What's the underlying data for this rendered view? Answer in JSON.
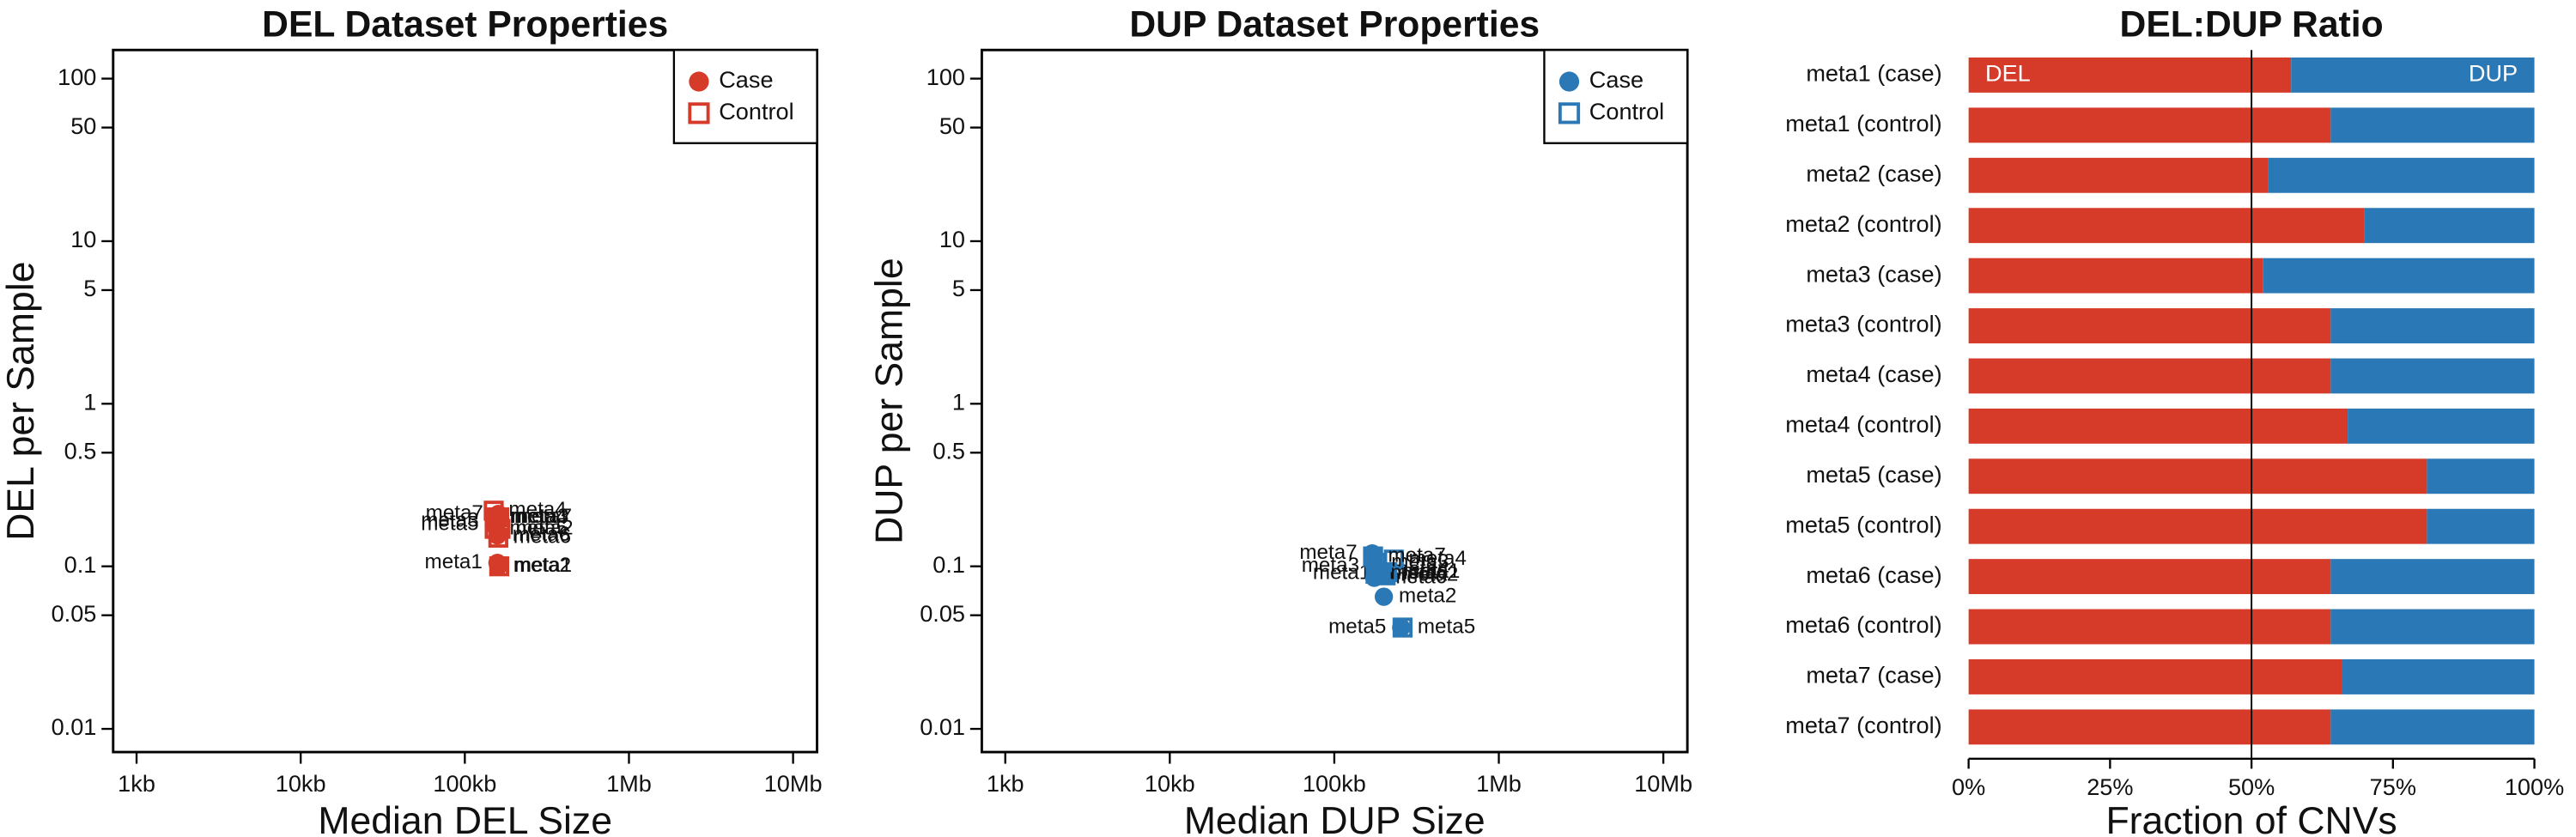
{
  "chart_data": [
    {
      "type": "scatter",
      "title": "DEL Dataset Properties",
      "x_label": "Median DEL Size",
      "y_label": "DEL per Sample",
      "xscale": "log",
      "yscale": "log",
      "xlim": [
        720,
        14000000
      ],
      "ylim": [
        0.0072,
        150
      ],
      "xticks": [
        {
          "value": 1000,
          "label": "1kb"
        },
        {
          "value": 10000,
          "label": "10kb"
        },
        {
          "value": 100000,
          "label": "100kb"
        },
        {
          "value": 1000000,
          "label": "1Mb"
        },
        {
          "value": 10000000,
          "label": "10Mb"
        }
      ],
      "yticks": [
        100,
        50,
        10,
        5,
        1,
        0.5,
        0.1,
        0.05,
        0.01
      ],
      "legend": "upper right",
      "series": [
        {
          "name": "Case",
          "marker": "circle",
          "color": "#d63b2a",
          "labels": [
            "meta1",
            "meta2",
            "meta3",
            "meta4",
            "meta5",
            "meta6",
            "meta7"
          ],
          "x": [
            158000,
            160000,
            150000,
            152000,
            150000,
            158000,
            160000
          ],
          "values": [
            0.105,
            0.1,
            0.19,
            0.2,
            0.18,
            0.155,
            0.21
          ]
        },
        {
          "name": "Control",
          "marker": "square-open",
          "color": "#d63b2a",
          "labels": [
            "meta1",
            "meta2",
            "meta3",
            "meta4",
            "meta5",
            "meta6",
            "meta7"
          ],
          "x": [
            162000,
            165000,
            155000,
            150000,
            152000,
            160000,
            162000
          ],
          "values": [
            0.1,
            0.17,
            0.2,
            0.22,
            0.17,
            0.15,
            0.2
          ]
        }
      ]
    },
    {
      "type": "scatter",
      "title": "DUP Dataset Properties",
      "x_label": "Median DUP Size",
      "y_label": "DUP per Sample",
      "xscale": "log",
      "yscale": "log",
      "xlim": [
        720,
        14000000
      ],
      "ylim": [
        0.0072,
        150
      ],
      "xticks": [
        {
          "value": 1000,
          "label": "1kb"
        },
        {
          "value": 10000,
          "label": "10kb"
        },
        {
          "value": 100000,
          "label": "100kb"
        },
        {
          "value": 1000000,
          "label": "1Mb"
        },
        {
          "value": 10000000,
          "label": "10Mb"
        }
      ],
      "yticks": [
        100,
        50,
        10,
        5,
        1,
        0.5,
        0.1,
        0.05,
        0.01
      ],
      "legend": "upper right",
      "series": [
        {
          "name": "Case",
          "marker": "circle",
          "color": "#2a78b5",
          "labels": [
            "meta1",
            "meta2",
            "meta3",
            "meta4",
            "meta5",
            "meta6",
            "meta7"
          ],
          "x": [
            205000,
            200000,
            175000,
            180000,
            255000,
            175000,
            170000
          ],
          "values": [
            0.09,
            0.065,
            0.1,
            0.095,
            0.042,
            0.085,
            0.12
          ]
        },
        {
          "name": "Control",
          "marker": "square-open",
          "color": "#2a78b5",
          "labels": [
            "meta1",
            "meta2",
            "meta3",
            "meta4",
            "meta5",
            "meta6",
            "meta7"
          ],
          "x": [
            210000,
            205000,
            180000,
            230000,
            260000,
            178000,
            172000
          ],
          "values": [
            0.092,
            0.088,
            0.105,
            0.11,
            0.042,
            0.09,
            0.115
          ]
        }
      ]
    },
    {
      "type": "stacked-barh",
      "title": "DEL:DUP Ratio",
      "x_label": "Fraction of CNVs",
      "categories": [
        "meta1 (case)",
        "meta1 (control)",
        "meta2 (case)",
        "meta2 (control)",
        "meta3 (case)",
        "meta3 (control)",
        "meta4 (case)",
        "meta4 (control)",
        "meta5 (case)",
        "meta5 (control)",
        "meta6 (case)",
        "meta6 (control)",
        "meta7 (case)",
        "meta7 (control)"
      ],
      "xlim": [
        0,
        100
      ],
      "xticks": [
        {
          "value": 0,
          "label": "0%"
        },
        {
          "value": 25,
          "label": "25%"
        },
        {
          "value": 50,
          "label": "50%"
        },
        {
          "value": 75,
          "label": "75%"
        },
        {
          "value": 100,
          "label": "100%"
        }
      ],
      "refline": 50,
      "series": [
        {
          "name": "DEL",
          "color": "#d63b2a",
          "values": [
            57,
            64,
            53,
            70,
            52,
            64,
            64,
            67,
            81,
            81,
            64,
            64,
            66,
            64
          ]
        },
        {
          "name": "DUP",
          "color": "#2a78b5",
          "values": [
            43,
            36,
            47,
            30,
            48,
            36,
            36,
            33,
            19,
            19,
            36,
            36,
            34,
            36
          ]
        }
      ]
    }
  ]
}
